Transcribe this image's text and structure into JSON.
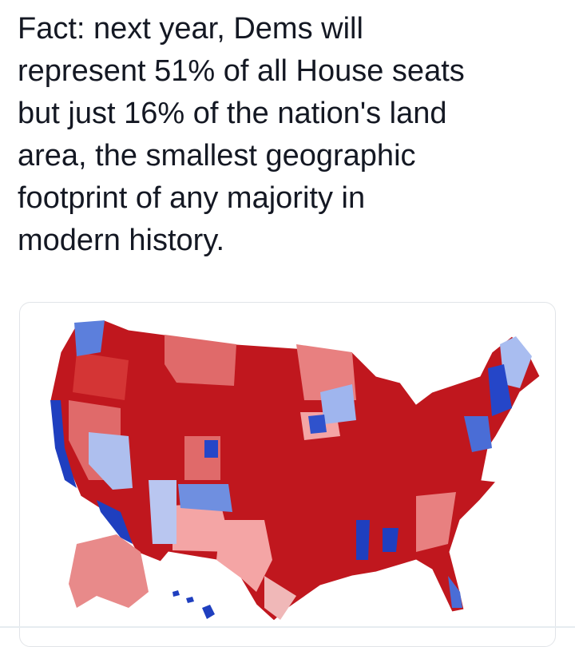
{
  "tweet": {
    "text_lines": [
      "Fact: next year, Dems will",
      "represent 51% of all House seats",
      "but just 16% of the nation's land",
      "area, the smallest geographic",
      "footprint of any majority in",
      "modern history."
    ]
  }
}
